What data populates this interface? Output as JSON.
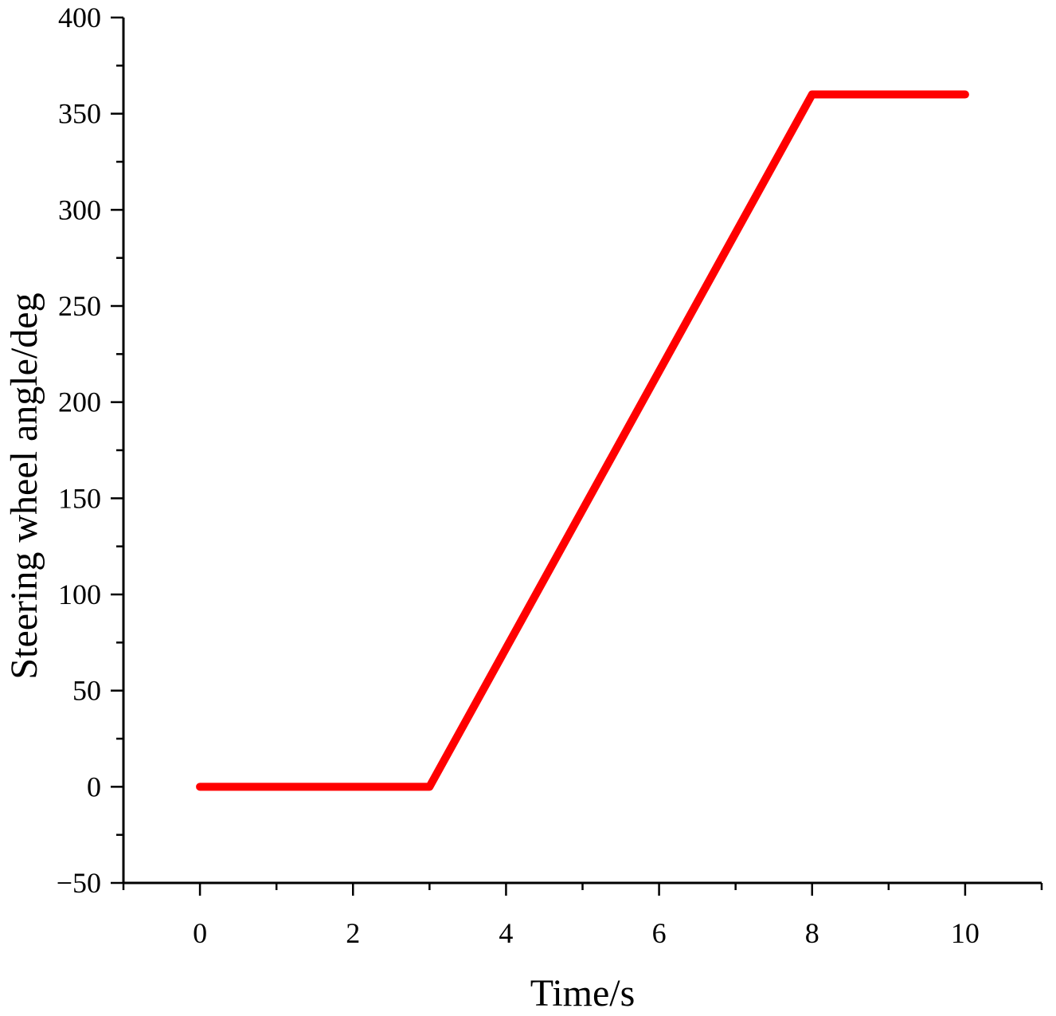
{
  "chart_data": {
    "type": "line",
    "title": "",
    "xlabel": "Time/s",
    "ylabel": "Steering wheel angle/deg",
    "xlim": [
      -1,
      11
    ],
    "ylim": [
      -50,
      400
    ],
    "x_ticks": [
      0,
      2,
      4,
      6,
      8,
      10
    ],
    "x_tick_labels": [
      "0",
      "2",
      "4",
      "6",
      "8",
      "10"
    ],
    "y_ticks": [
      -50,
      0,
      50,
      100,
      150,
      200,
      250,
      300,
      350,
      400
    ],
    "y_tick_labels": [
      "−50",
      "0",
      "50",
      "100",
      "150",
      "200",
      "250",
      "300",
      "350",
      "400"
    ],
    "grid": false,
    "legend": "none",
    "series": [
      {
        "color": "#ff0000",
        "x": [
          0,
          3,
          8,
          10
        ],
        "y": [
          0,
          0,
          360,
          360
        ]
      }
    ]
  }
}
